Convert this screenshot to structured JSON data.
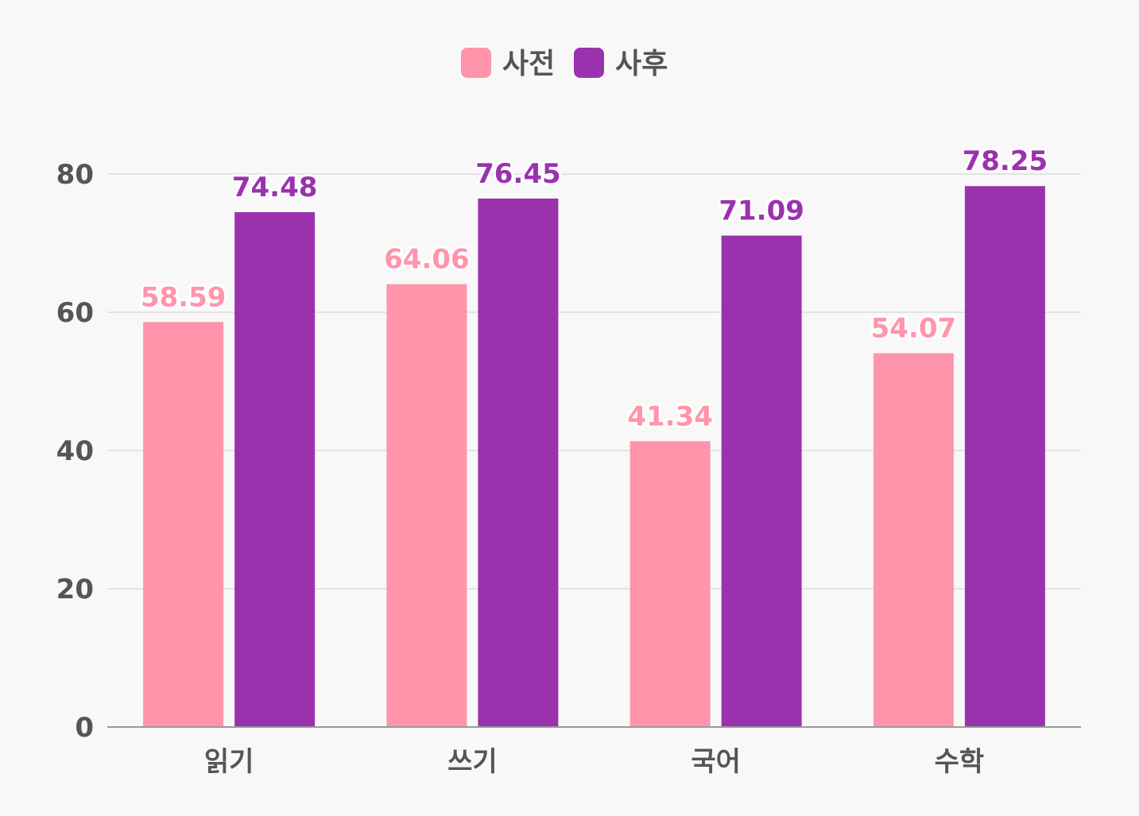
{
  "chart_data": {
    "type": "bar",
    "categories": [
      "읽기",
      "쓰기",
      "국어",
      "수학"
    ],
    "series": [
      {
        "name": "사전",
        "color": "#ff94aa",
        "values": [
          58.59,
          64.06,
          41.34,
          54.07
        ]
      },
      {
        "name": "사후",
        "color": "#9a32ae",
        "values": [
          74.48,
          76.45,
          71.09,
          78.25
        ]
      }
    ],
    "value_labels": {
      "0": [
        "58.59",
        "64.06",
        "41.34",
        "54.07"
      ],
      "1": [
        "74.48",
        "76.45",
        "71.09",
        "78.25"
      ]
    },
    "ylim": [
      0,
      80
    ],
    "yticks": [
      "0",
      "20",
      "40",
      "60",
      "80"
    ],
    "grid": true,
    "legend_position": "top-center"
  },
  "colors": {
    "background": "#f8f8f8",
    "gridline": "#dddddd",
    "axis": "#999999",
    "text": "#555555"
  }
}
